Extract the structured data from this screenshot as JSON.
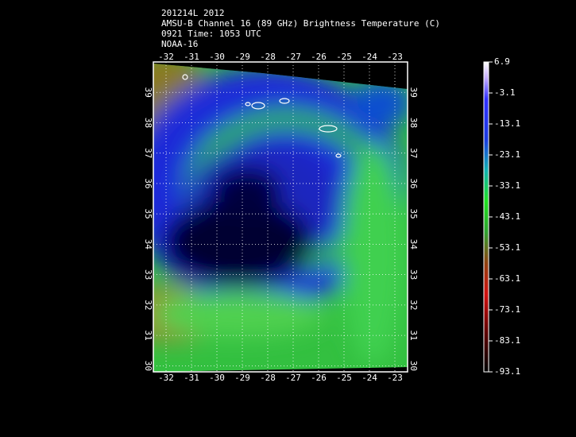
{
  "header": {
    "lines": [
      "201214L 2012",
      "AMSU-B Channel 16 (89 GHz) Brightness Temperature (C)",
      "0921 Time: 1053 UTC",
      "NOAA-16"
    ]
  },
  "map": {
    "xlim": [
      -32.5,
      -22.5
    ],
    "ylim": [
      29.8,
      40
    ],
    "xticks": [
      -32,
      -31,
      -30,
      -29,
      -28,
      -27,
      -26,
      -25,
      -24,
      -23
    ],
    "yticks": [
      30,
      31,
      32,
      33,
      34,
      35,
      36,
      37,
      38,
      39
    ],
    "grid": true
  },
  "colorbar": {
    "range": [
      -93.1,
      6.9
    ],
    "ticks": [
      6.9,
      -3.1,
      -13.1,
      -23.1,
      -33.1,
      -43.1,
      -53.1,
      -63.1,
      -73.1,
      -83.1,
      -93.1
    ]
  }
}
